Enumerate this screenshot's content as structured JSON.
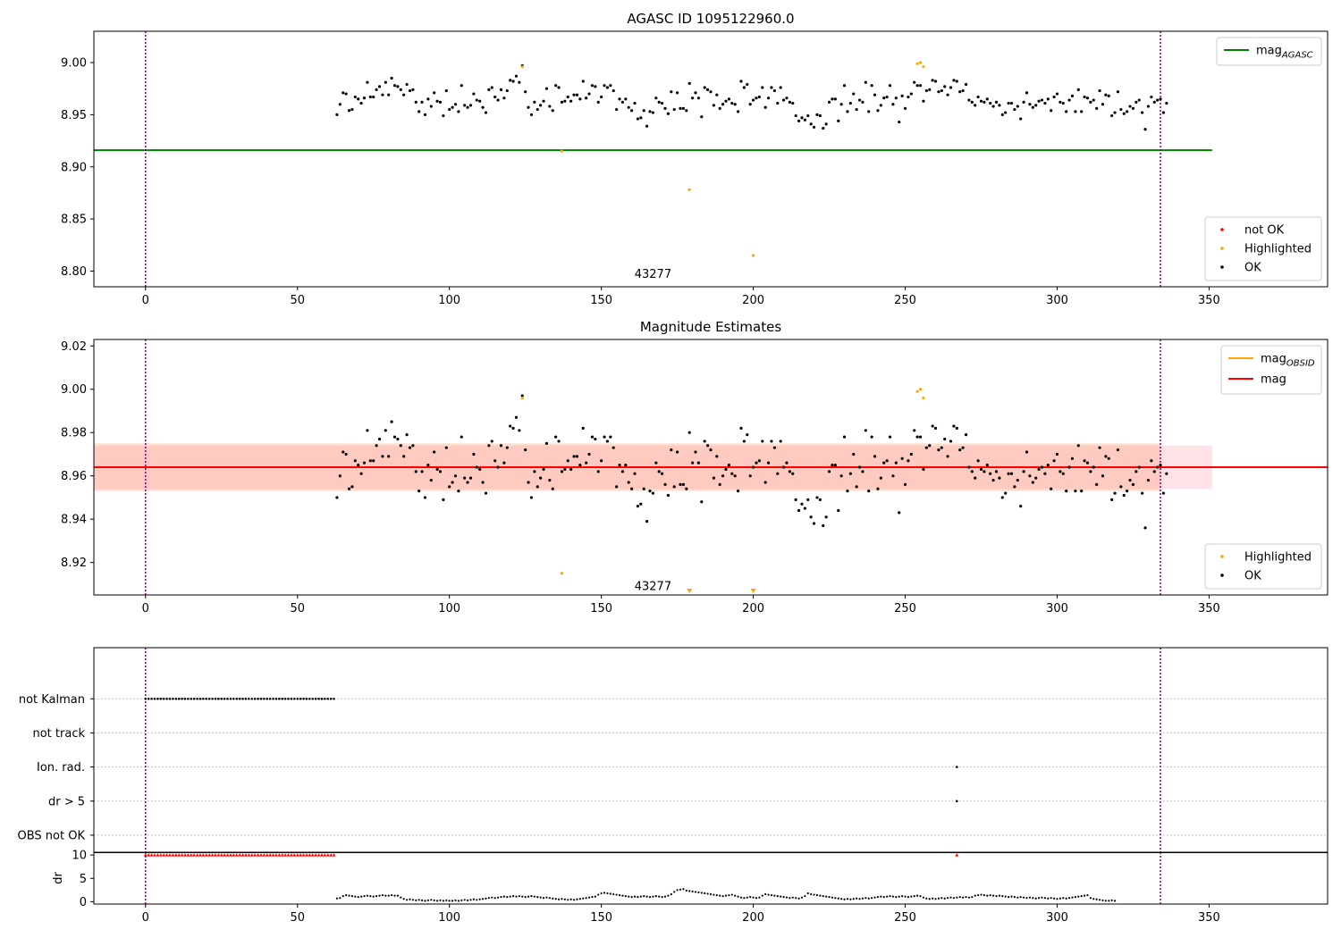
{
  "figure": {
    "background": "#ffffff"
  },
  "chart_data": [
    {
      "type": "scatter",
      "title": "AGASC ID 1095122960.0",
      "xlim": [
        -17,
        389
      ],
      "ylim": [
        8.785,
        9.03
      ],
      "xticks": [
        0,
        50,
        100,
        150,
        200,
        250,
        300,
        350
      ],
      "yticks": [
        8.8,
        8.85,
        8.9,
        8.95,
        9.0
      ],
      "ytick_format": 2,
      "vlines": [
        0,
        334
      ],
      "obsid_label": {
        "text": "43277",
        "x": 167,
        "y": 8.797
      },
      "hlines": [
        {
          "label": "mag_AGASC",
          "y": 8.916,
          "x_range": [
            -17,
            351
          ],
          "color": "#008000"
        }
      ],
      "line_legend": [
        {
          "label": "mag",
          "sub": "AGASC",
          "color": "#008000"
        }
      ],
      "point_legend": [
        {
          "label": "not OK",
          "color": "#ff0000"
        },
        {
          "label": "Highlighted",
          "color": "#ffa500"
        },
        {
          "label": "OK",
          "color": "#000000"
        }
      ],
      "series": [
        {
          "name": "OK",
          "color": "#000000",
          "source": "ok"
        },
        {
          "name": "Highlighted",
          "color": "#ffa500",
          "x": [
            124,
            137,
            179,
            200,
            254,
            255,
            256
          ],
          "y": [
            8.996,
            8.915,
            8.878,
            8.815,
            8.999,
            9.0,
            8.996
          ]
        }
      ]
    },
    {
      "type": "scatter",
      "title": "Magnitude Estimates",
      "xlim": [
        -17,
        389
      ],
      "ylim": [
        8.905,
        9.023
      ],
      "xticks": [
        0,
        50,
        100,
        150,
        200,
        250,
        300,
        350
      ],
      "yticks": [
        8.92,
        8.94,
        8.96,
        8.98,
        9.0,
        9.02
      ],
      "ytick_format": 2,
      "vlines": [
        0,
        334
      ],
      "obsid_label": {
        "text": "43277",
        "x": 167,
        "y": 8.909
      },
      "bands": [
        {
          "y0": 8.954,
          "y1": 8.974,
          "x_range": [
            -17,
            351
          ],
          "color": "#ffb6c1",
          "opacity": 0.4
        },
        {
          "y0": 8.953,
          "y1": 8.975,
          "x_range": [
            -17,
            334
          ],
          "color": "#ffa07a",
          "opacity": 0.35
        }
      ],
      "hlines": [
        {
          "label": "mag_OBSID",
          "y": 8.964,
          "x_range": [
            -17,
            334
          ],
          "color": "#ffa500"
        },
        {
          "label": "mag",
          "y": 8.964,
          "x_range": [
            -17,
            389
          ],
          "color": "#ff0000"
        }
      ],
      "line_legend": [
        {
          "label": "mag",
          "sub": "OBSID",
          "color": "#ffa500"
        },
        {
          "label": "mag",
          "sub": "",
          "color": "#ff0000"
        }
      ],
      "point_legend": [
        {
          "label": "Highlighted",
          "color": "#ffa500"
        },
        {
          "label": "OK",
          "color": "#000000"
        }
      ],
      "series": [
        {
          "name": "OK",
          "color": "#000000",
          "source": "ok"
        },
        {
          "name": "Highlighted",
          "color": "#ffa500",
          "x": [
            124,
            137,
            254,
            255,
            256
          ],
          "y": [
            8.996,
            8.915,
            8.999,
            9.0,
            8.996
          ]
        }
      ],
      "offscale_markers": {
        "x": [
          179,
          200
        ],
        "color": "#ffa500",
        "direction": "down"
      }
    },
    {
      "type": "scatter",
      "title": "",
      "xlim": [
        -17,
        389
      ],
      "ylim": [
        -0.5,
        5.5
      ],
      "categories": [
        "OBS not OK",
        "dr > 5",
        "Ion. rad.",
        "not track",
        "not Kalman"
      ],
      "xticks": [],
      "vlines": [
        0,
        334
      ],
      "series": [
        {
          "name": "not Kalman",
          "color": "#000000",
          "x_range": [
            0,
            62
          ],
          "x_step": 1
        },
        {
          "name": "Ion. rad.",
          "color": "#000000",
          "x": [
            267
          ]
        },
        {
          "name": "dr > 5",
          "color": "#000000",
          "x": [
            267
          ]
        }
      ]
    },
    {
      "type": "scatter",
      "title": "",
      "ylabel": "dr",
      "xlim": [
        -17,
        389
      ],
      "ylim": [
        -0.5,
        10.6
      ],
      "xticks": [
        0,
        50,
        100,
        150,
        200,
        250,
        300,
        350
      ],
      "yticks": [
        0,
        5,
        10
      ],
      "ytick_format": 0,
      "vlines": [
        0,
        334
      ],
      "hline_black": 10.5,
      "series": [
        {
          "name": "dr capped",
          "color": "#ff0000",
          "x_range": [
            0,
            62
          ],
          "x_step": 1,
          "y": 10
        },
        {
          "name": "dr capped",
          "color": "#ff0000",
          "x": [
            267
          ],
          "y": [
            10
          ]
        },
        {
          "name": "dr",
          "color": "#000000",
          "source": "dr"
        }
      ]
    }
  ],
  "ok_points": {
    "x_start": 63,
    "x_end": 334,
    "mag": [
      8.95,
      8.96,
      8.971,
      8.97,
      8.954,
      8.955,
      8.967,
      8.965,
      8.961,
      8.966,
      8.981,
      8.967,
      8.967,
      8.974,
      8.977,
      8.969,
      8.981,
      8.969,
      8.985,
      8.978,
      8.977,
      8.974,
      8.969,
      8.979,
      8.973,
      8.974,
      8.962,
      8.953,
      8.962,
      8.95,
      8.965,
      8.958,
      8.971,
      8.963,
      8.962,
      8.949,
      8.973,
      8.955,
      8.957,
      8.96,
      8.953,
      8.978,
      8.959,
      8.957,
      8.959,
      8.97,
      8.964,
      8.963,
      8.957,
      8.952,
      8.974,
      8.976,
      8.967,
      8.964,
      8.974,
      8.966,
      8.973,
      8.983,
      8.982,
      8.987,
      8.981,
      8.997,
      8.972,
      8.957,
      8.95,
      8.962,
      8.955,
      8.959,
      8.963,
      8.975,
      8.958,
      8.954,
      8.978,
      8.976,
      8.962,
      8.963,
      8.967,
      8.963,
      8.969,
      8.969,
      8.965,
      8.982,
      8.966,
      8.97,
      8.978,
      8.977,
      8.962,
      8.967,
      8.978,
      8.976,
      8.978,
      8.973,
      8.955,
      8.965,
      8.962,
      8.965,
      8.957,
      8.954,
      8.961,
      8.946,
      8.947,
      8.954,
      8.939,
      8.953,
      8.952,
      8.966,
      8.962,
      8.961,
      8.956,
      8.951,
      8.972,
      8.955,
      8.971,
      8.956,
      8.956,
      8.954,
      8.98,
      8.966,
      8.971,
      8.966,
      8.948,
      8.976,
      8.974,
      8.972,
      8.959,
      8.969,
      8.956,
      8.96,
      8.963,
      8.965,
      8.961,
      8.96,
      8.953,
      8.982,
      8.976,
      8.979,
      8.96,
      8.964,
      8.966,
      8.967,
      8.976,
      8.957,
      8.966,
      8.976,
      8.973,
      8.961,
      8.976,
      8.964,
      8.966,
      8.962,
      8.961,
      8.949,
      8.944,
      8.947,
      8.945,
      8.949,
      8.941,
      8.938,
      8.95,
      8.949,
      8.937,
      8.941,
      8.962,
      8.965,
      8.965,
      8.944,
      8.96,
      8.978,
      8.953,
      8.961,
      8.97,
      8.955,
      8.964,
      8.962,
      8.981,
      8.953,
      8.978,
      8.969,
      8.954,
      8.959,
      8.966,
      8.967,
      8.978,
      8.96,
      8.966,
      8.943,
      8.968,
      8.956,
      8.967,
      8.97,
      8.981,
      8.978,
      8.978,
      8.963,
      8.973,
      8.974,
      8.983,
      8.982,
      8.972,
      8.973,
      8.977,
      8.969,
      8.976,
      8.983,
      8.982,
      8.972,
      8.973,
      8.979,
      8.964,
      8.962,
      8.959,
      8.967,
      8.963,
      8.962,
      8.965,
      8.961,
      8.958,
      8.962,
      8.959,
      8.95,
      8.952,
      8.961,
      8.961,
      8.955,
      8.958,
      8.946,
      8.962,
      8.971,
      8.96,
      8.957,
      8.959,
      8.963,
      8.964,
      8.961,
      8.965,
      8.954,
      8.967,
      8.97,
      8.962,
      8.961,
      8.953,
      8.964,
      8.968,
      8.953,
      8.974,
      8.953,
      8.967,
      8.966,
      8.962,
      8.964,
      8.956,
      8.973,
      8.96,
      8.969,
      8.968,
      8.949,
      8.952,
      8.972,
      8.955,
      8.951,
      8.953,
      8.958,
      8.956,
      8.962,
      8.964,
      8.952,
      8.936,
      8.958,
      8.967,
      8.962,
      8.964,
      8.965,
      8.952,
      8.961
    ],
    "dr": [
      0.7,
      0.8,
      1.2,
      1.4,
      1.3,
      1.2,
      1.1,
      1.0,
      1.1,
      1.2,
      1.3,
      1.2,
      1.1,
      1.2,
      1.3,
      1.4,
      1.3,
      1.3,
      1.4,
      1.3,
      1.3,
      0.9,
      0.6,
      0.4,
      0.5,
      0.4,
      0.3,
      0.4,
      0.3,
      0.2,
      0.3,
      0.4,
      0.3,
      0.2,
      0.3,
      0.2,
      0.3,
      0.2,
      0.2,
      0.3,
      0.2,
      0.3,
      0.4,
      0.3,
      0.4,
      0.5,
      0.4,
      0.5,
      0.6,
      0.7,
      0.8,
      0.9,
      0.8,
      0.9,
      1.0,
      1.1,
      1.0,
      1.1,
      1.2,
      1.1,
      1.2,
      1.1,
      1.0,
      1.1,
      1.2,
      1.1,
      1.0,
      0.9,
      0.8,
      0.9,
      0.8,
      0.7,
      0.6,
      0.5,
      0.6,
      0.5,
      0.4,
      0.5,
      0.4,
      0.5,
      0.6,
      0.7,
      0.8,
      0.9,
      1.0,
      1.1,
      1.5,
      1.8,
      1.9,
      1.8,
      1.7,
      1.6,
      1.5,
      1.4,
      1.3,
      1.2,
      1.1,
      1.0,
      1.1,
      1.0,
      1.1,
      1.2,
      1.1,
      1.0,
      1.1,
      1.2,
      1.1,
      1.0,
      1.1,
      1.3,
      1.6,
      2.1,
      2.5,
      2.6,
      2.7,
      2.4,
      2.3,
      2.2,
      2.1,
      2.0,
      1.9,
      1.8,
      1.7,
      1.6,
      1.5,
      1.4,
      1.3,
      1.2,
      1.3,
      1.4,
      1.5,
      1.3,
      1.1,
      0.9,
      0.8,
      0.9,
      1.0,
      0.9,
      0.8,
      0.9,
      1.3,
      1.6,
      1.5,
      1.4,
      1.3,
      1.2,
      1.1,
      1.0,
      0.9,
      0.8,
      0.9,
      0.8,
      0.7,
      0.9,
      1.2,
      1.8,
      1.6,
      1.5,
      1.4,
      1.3,
      1.2,
      1.1,
      1.0,
      0.9,
      0.8,
      0.7,
      0.6,
      0.5,
      0.6,
      0.5,
      0.6,
      0.7,
      0.6,
      0.7,
      0.8,
      0.7,
      0.8,
      0.9,
      1.0,
      1.1,
      1.0,
      1.1,
      1.2,
      1.1,
      1.0,
      1.1,
      1.2,
      1.1,
      1.0,
      1.1,
      1.2,
      1.3,
      1.2,
      0.9,
      0.7,
      0.6,
      0.7,
      0.6,
      0.7,
      0.8,
      0.7,
      0.8,
      0.9,
      0.8,
      0.9,
      1.0,
      0.9,
      1.0,
      0.9,
      1.0,
      1.3,
      1.4,
      1.5,
      1.4,
      1.3,
      1.4,
      1.3,
      1.2,
      1.3,
      1.2,
      1.1,
      1.0,
      1.1,
      1.0,
      0.9,
      1.0,
      0.9,
      0.8,
      0.9,
      0.8,
      0.7,
      0.8,
      0.9,
      0.8,
      0.7,
      0.8,
      0.7,
      0.6,
      0.7,
      0.8,
      0.7,
      0.8,
      0.9,
      1.0,
      1.1,
      1.2,
      1.3,
      1.4,
      0.8,
      0.6,
      0.5,
      0.4,
      0.3,
      0.2,
      0.2,
      0.3,
      0.2
    ]
  }
}
